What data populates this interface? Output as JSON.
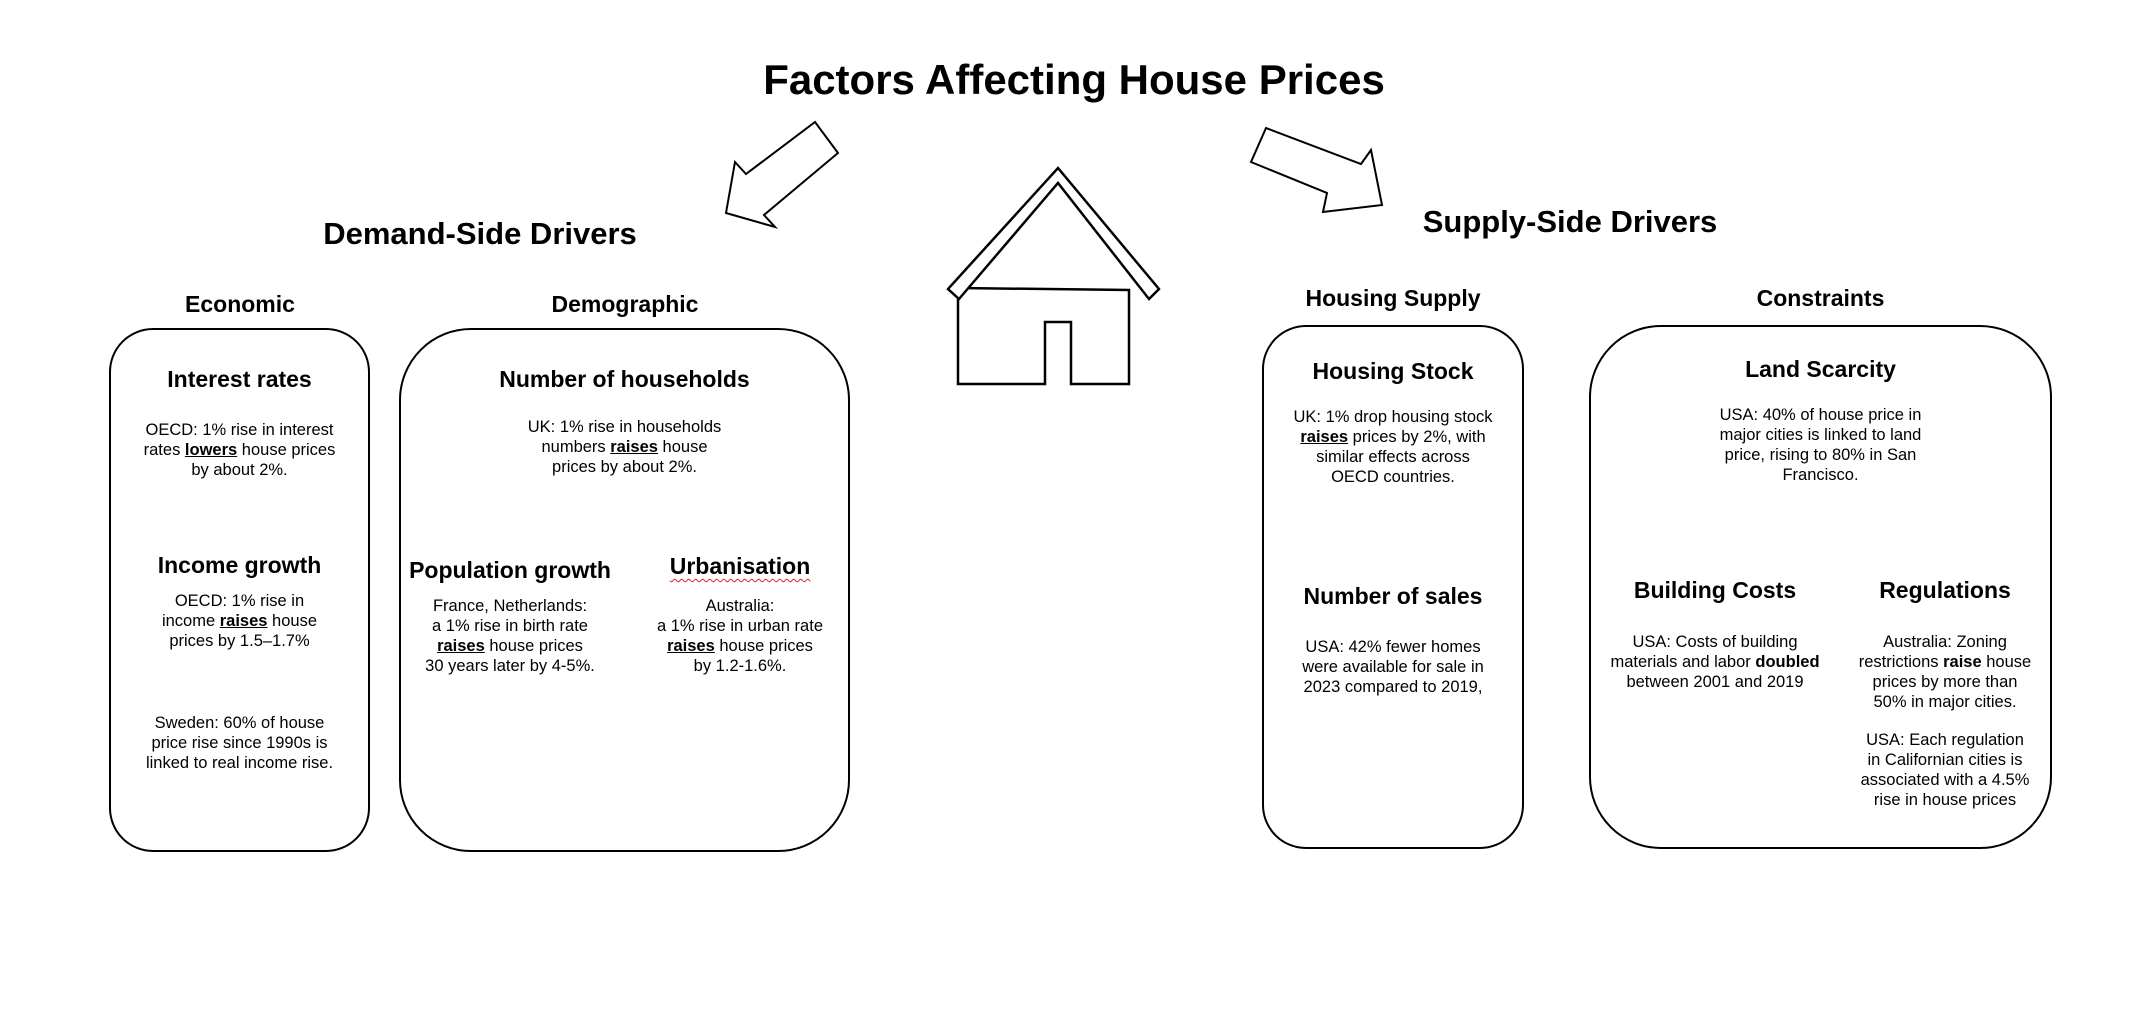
{
  "title": "Factors Affecting House Prices",
  "demand": {
    "title": "Demand-Side Drivers",
    "economic": {
      "title": "Economic",
      "interest": {
        "title": "Interest rates",
        "l1": "OECD: 1% rise in interest",
        "l2_pre": "rates ",
        "l2_em": "lowers",
        "l2_post": " house prices",
        "l3": "by about 2%."
      },
      "income": {
        "title": "Income growth",
        "l1": "OECD: 1% rise in",
        "l2_pre": "income ",
        "l2_em": "raises",
        "l2_post": " house",
        "l3": "prices by 1.5–1.7%"
      },
      "sweden": {
        "l1": "Sweden: 60% of house",
        "l2": "price rise since 1990s is",
        "l3": "linked to real income rise."
      }
    },
    "demographic": {
      "title": "Demographic",
      "households": {
        "title": "Number of households",
        "l1": "UK: 1% rise in households",
        "l2_pre": "numbers ",
        "l2_em": "raises",
        "l2_post": " house",
        "l3": "prices by about 2%."
      },
      "population": {
        "title": "Population growth",
        "l1": "France, Netherlands:",
        "l2": "a 1% rise in birth rate",
        "l3_em": "raises",
        "l3_post": " house prices",
        "l4": "30 years later by 4-5%."
      },
      "urbanisation": {
        "title": "Urbanisation",
        "l1": "Australia:",
        "l2": "a 1% rise in urban rate",
        "l3_em": "raises",
        "l3_post": " house prices",
        "l4": "by 1.2-1.6%."
      }
    }
  },
  "supply": {
    "title": "Supply-Side Drivers",
    "housing_supply": {
      "title": "Housing Supply",
      "stock": {
        "title": "Housing Stock",
        "l1": "UK: 1% drop housing stock",
        "l2_em": "raises",
        "l2_post": " prices by 2%, with",
        "l3": "similar effects across",
        "l4": "OECD countries."
      },
      "sales": {
        "title": "Number of sales",
        "l1": "USA: 42% fewer homes",
        "l2": "were available for sale in",
        "l3": "2023 compared to 2019,"
      }
    },
    "constraints": {
      "title": "Constraints",
      "land": {
        "title": "Land Scarcity",
        "l1": "USA: 40% of house price in",
        "l2": "major cities is linked to land",
        "l3": "price, rising to 80% in San",
        "l4": "Francisco."
      },
      "building": {
        "title": "Building Costs",
        "l1": "USA: Costs of building",
        "l2_pre": "materials and labor ",
        "l2_em": "doubled",
        "l3": "between 2001 and 2019"
      },
      "regulations": {
        "title": "Regulations",
        "l1": "Australia: Zoning",
        "l2_pre": "restrictions ",
        "l2_em": "raise",
        "l2_post": " house",
        "l3": "prices by more than",
        "l4": "50% in major cities.",
        "l5": "USA: Each regulation",
        "l6": "in Californian cities is",
        "l7": "associated with a 4.5%",
        "l8": "rise in house prices"
      }
    }
  }
}
